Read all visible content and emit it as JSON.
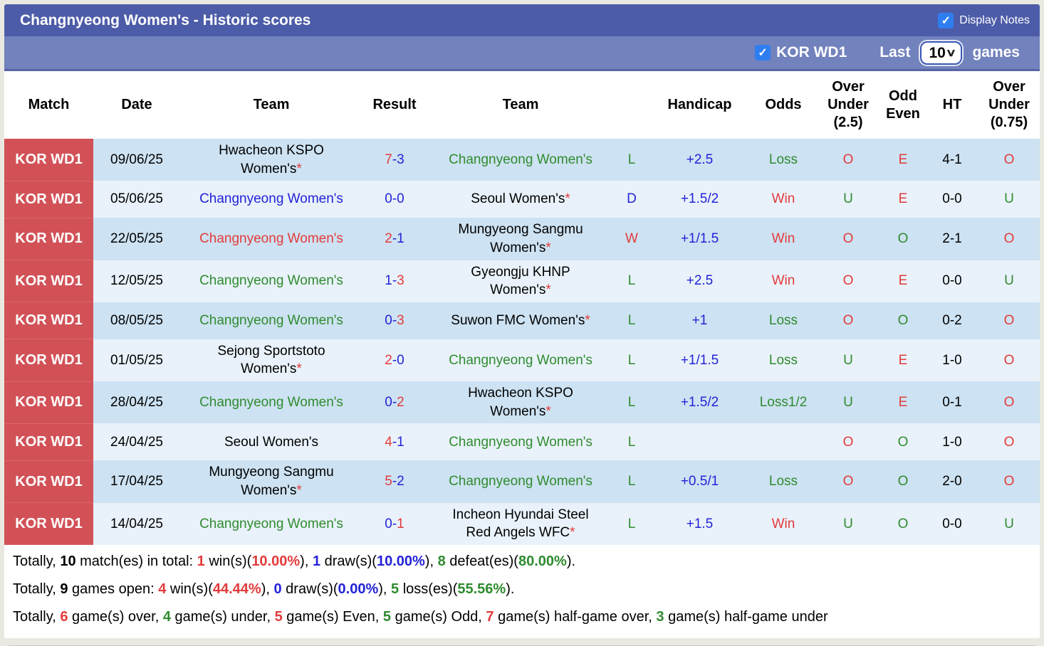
{
  "header": {
    "title": "Changnyeong Women's - Historic scores",
    "display_notes_label": "Display Notes",
    "display_notes_checked": true
  },
  "controls": {
    "league_filter_label": "KOR WD1",
    "league_filter_checked": true,
    "last_label": "Last",
    "games_count": "10",
    "games_label": "games"
  },
  "icons": {
    "check": "✓",
    "chevron_down": "∨"
  },
  "colors": {
    "title_bar": "#4d5ca8",
    "sub_bar": "#7282bd",
    "league_badge": "#d25157",
    "row_odd": "#cde2f2",
    "row_even": "#e9f2fa",
    "win_red": "#e33b3b",
    "draw_blue": "#2323d8",
    "loss_green": "#2f8b2f",
    "checkbox_blue": "#2e7ef0"
  },
  "table": {
    "columns": [
      "Match",
      "Date",
      "Team",
      "Result",
      "Team",
      "Handicap",
      "Odds",
      "Over Under (2.5)",
      "Odd Even",
      "HT",
      "Over Under (0.75)"
    ],
    "score_separator": "-",
    "rows": [
      {
        "league": "KOR WD1",
        "date": "09/06/25",
        "t1": "Hwacheon KSPO Women's",
        "t1c": "black",
        "t1star": "*",
        "s1": "7",
        "s1c": "red",
        "s2": "3",
        "s2c": "blue",
        "t2": "Changnyeong Women's",
        "t2c": "green",
        "t2star": "",
        "wdl": "L",
        "wdlc": "green",
        "handicap": "+2.5",
        "odds": "Loss",
        "oddsc": "green",
        "ou25": "O",
        "ou25c": "red",
        "oe": "E",
        "oec": "red",
        "ht": "4-1",
        "ou075": "O",
        "ou075c": "red"
      },
      {
        "league": "KOR WD1",
        "date": "05/06/25",
        "t1": "Changnyeong Women's",
        "t1c": "blue",
        "t1star": "",
        "s1": "0",
        "s1c": "blue",
        "s2": "0",
        "s2c": "blue",
        "t2": "Seoul Women's",
        "t2c": "black",
        "t2star": "*",
        "wdl": "D",
        "wdlc": "blue",
        "handicap": "+1.5/2",
        "odds": "Win",
        "oddsc": "red",
        "ou25": "U",
        "ou25c": "green",
        "oe": "E",
        "oec": "red",
        "ht": "0-0",
        "ou075": "U",
        "ou075c": "green"
      },
      {
        "league": "KOR WD1",
        "date": "22/05/25",
        "t1": "Changnyeong Women's",
        "t1c": "red",
        "t1star": "",
        "s1": "2",
        "s1c": "red",
        "s2": "1",
        "s2c": "blue",
        "t2": "Mungyeong Sangmu Women's",
        "t2c": "black",
        "t2star": "*",
        "wdl": "W",
        "wdlc": "red",
        "handicap": "+1/1.5",
        "odds": "Win",
        "oddsc": "red",
        "ou25": "O",
        "ou25c": "red",
        "oe": "O",
        "oec": "green",
        "ht": "2-1",
        "ou075": "O",
        "ou075c": "red"
      },
      {
        "league": "KOR WD1",
        "date": "12/05/25",
        "t1": "Changnyeong Women's",
        "t1c": "green",
        "t1star": "",
        "s1": "1",
        "s1c": "blue",
        "s2": "3",
        "s2c": "red",
        "t2": "Gyeongju KHNP Women's",
        "t2c": "black",
        "t2star": "*",
        "wdl": "L",
        "wdlc": "green",
        "handicap": "+2.5",
        "odds": "Win",
        "oddsc": "red",
        "ou25": "O",
        "ou25c": "red",
        "oe": "E",
        "oec": "red",
        "ht": "0-0",
        "ou075": "U",
        "ou075c": "green"
      },
      {
        "league": "KOR WD1",
        "date": "08/05/25",
        "t1": "Changnyeong Women's",
        "t1c": "green",
        "t1star": "",
        "s1": "0",
        "s1c": "blue",
        "s2": "3",
        "s2c": "red",
        "t2": "Suwon FMC Women's",
        "t2c": "black",
        "t2star": "*",
        "wdl": "L",
        "wdlc": "green",
        "handicap": "+1",
        "odds": "Loss",
        "oddsc": "green",
        "ou25": "O",
        "ou25c": "red",
        "oe": "O",
        "oec": "green",
        "ht": "0-2",
        "ou075": "O",
        "ou075c": "red"
      },
      {
        "league": "KOR WD1",
        "date": "01/05/25",
        "t1": "Sejong Sportstoto Women's",
        "t1c": "black",
        "t1star": "*",
        "s1": "2",
        "s1c": "red",
        "s2": "0",
        "s2c": "blue",
        "t2": "Changnyeong Women's",
        "t2c": "green",
        "t2star": "",
        "wdl": "L",
        "wdlc": "green",
        "handicap": "+1/1.5",
        "odds": "Loss",
        "oddsc": "green",
        "ou25": "U",
        "ou25c": "green",
        "oe": "E",
        "oec": "red",
        "ht": "1-0",
        "ou075": "O",
        "ou075c": "red"
      },
      {
        "league": "KOR WD1",
        "date": "28/04/25",
        "t1": "Changnyeong Women's",
        "t1c": "green",
        "t1star": "",
        "s1": "0",
        "s1c": "blue",
        "s2": "2",
        "s2c": "red",
        "t2": "Hwacheon KSPO Women's",
        "t2c": "black",
        "t2star": "*",
        "wdl": "L",
        "wdlc": "green",
        "handicap": "+1.5/2",
        "odds": "Loss1/2",
        "oddsc": "green",
        "ou25": "U",
        "ou25c": "green",
        "oe": "E",
        "oec": "red",
        "ht": "0-1",
        "ou075": "O",
        "ou075c": "red"
      },
      {
        "league": "KOR WD1",
        "date": "24/04/25",
        "t1": "Seoul Women's",
        "t1c": "black",
        "t1star": "",
        "s1": "4",
        "s1c": "red",
        "s2": "1",
        "s2c": "blue",
        "t2": "Changnyeong Women's",
        "t2c": "green",
        "t2star": "",
        "wdl": "L",
        "wdlc": "green",
        "handicap": "",
        "odds": "",
        "oddsc": "black",
        "ou25": "O",
        "ou25c": "red",
        "oe": "O",
        "oec": "green",
        "ht": "1-0",
        "ou075": "O",
        "ou075c": "red"
      },
      {
        "league": "KOR WD1",
        "date": "17/04/25",
        "t1": "Mungyeong Sangmu Women's",
        "t1c": "black",
        "t1star": "*",
        "s1": "5",
        "s1c": "red",
        "s2": "2",
        "s2c": "blue",
        "t2": "Changnyeong Women's",
        "t2c": "green",
        "t2star": "",
        "wdl": "L",
        "wdlc": "green",
        "handicap": "+0.5/1",
        "odds": "Loss",
        "oddsc": "green",
        "ou25": "O",
        "ou25c": "red",
        "oe": "O",
        "oec": "green",
        "ht": "2-0",
        "ou075": "O",
        "ou075c": "red"
      },
      {
        "league": "KOR WD1",
        "date": "14/04/25",
        "t1": "Changnyeong Women's",
        "t1c": "green",
        "t1star": "",
        "s1": "0",
        "s1c": "blue",
        "s2": "1",
        "s2c": "red",
        "t2": "Incheon Hyundai Steel Red Angels WFC",
        "t2c": "black",
        "t2star": "*",
        "wdl": "L",
        "wdlc": "green",
        "handicap": "+1.5",
        "odds": "Win",
        "oddsc": "red",
        "ou25": "U",
        "ou25c": "green",
        "oe": "O",
        "oec": "green",
        "ht": "0-0",
        "ou075": "U",
        "ou075c": "green"
      }
    ]
  },
  "summary": {
    "l1": [
      {
        "t": "Totally, ",
        "c": "k"
      },
      {
        "t": "10",
        "c": "kb"
      },
      {
        "t": " match(es) in total: ",
        "c": "k"
      },
      {
        "t": "1",
        "c": "rb"
      },
      {
        "t": " win(s)(",
        "c": "k"
      },
      {
        "t": "10.00%",
        "c": "rb"
      },
      {
        "t": "), ",
        "c": "k"
      },
      {
        "t": "1",
        "c": "bb"
      },
      {
        "t": " draw(s)(",
        "c": "k"
      },
      {
        "t": "10.00%",
        "c": "bb"
      },
      {
        "t": "), ",
        "c": "k"
      },
      {
        "t": "8",
        "c": "gb"
      },
      {
        "t": " defeat(es)(",
        "c": "k"
      },
      {
        "t": "80.00%",
        "c": "gb"
      },
      {
        "t": ").",
        "c": "k"
      }
    ],
    "l2": [
      {
        "t": "Totally, ",
        "c": "k"
      },
      {
        "t": "9",
        "c": "kb"
      },
      {
        "t": " games open: ",
        "c": "k"
      },
      {
        "t": "4",
        "c": "rb"
      },
      {
        "t": " win(s)(",
        "c": "k"
      },
      {
        "t": "44.44%",
        "c": "rb"
      },
      {
        "t": "), ",
        "c": "k"
      },
      {
        "t": "0",
        "c": "bb"
      },
      {
        "t": " draw(s)(",
        "c": "k"
      },
      {
        "t": "0.00%",
        "c": "bb"
      },
      {
        "t": "), ",
        "c": "k"
      },
      {
        "t": "5",
        "c": "gb"
      },
      {
        "t": " loss(es)(",
        "c": "k"
      },
      {
        "t": "55.56%",
        "c": "gb"
      },
      {
        "t": ").",
        "c": "k"
      }
    ],
    "l3": [
      {
        "t": "Totally, ",
        "c": "k"
      },
      {
        "t": "6",
        "c": "rb"
      },
      {
        "t": " game(s) over, ",
        "c": "k"
      },
      {
        "t": "4",
        "c": "gb"
      },
      {
        "t": " game(s) under, ",
        "c": "k"
      },
      {
        "t": "5",
        "c": "rb"
      },
      {
        "t": " game(s) Even, ",
        "c": "k"
      },
      {
        "t": "5",
        "c": "gb"
      },
      {
        "t": " game(s) Odd, ",
        "c": "k"
      },
      {
        "t": "7",
        "c": "rb"
      },
      {
        "t": " game(s) half-game over, ",
        "c": "k"
      },
      {
        "t": "3",
        "c": "gb"
      },
      {
        "t": " game(s) half-game under",
        "c": "k"
      }
    ]
  }
}
